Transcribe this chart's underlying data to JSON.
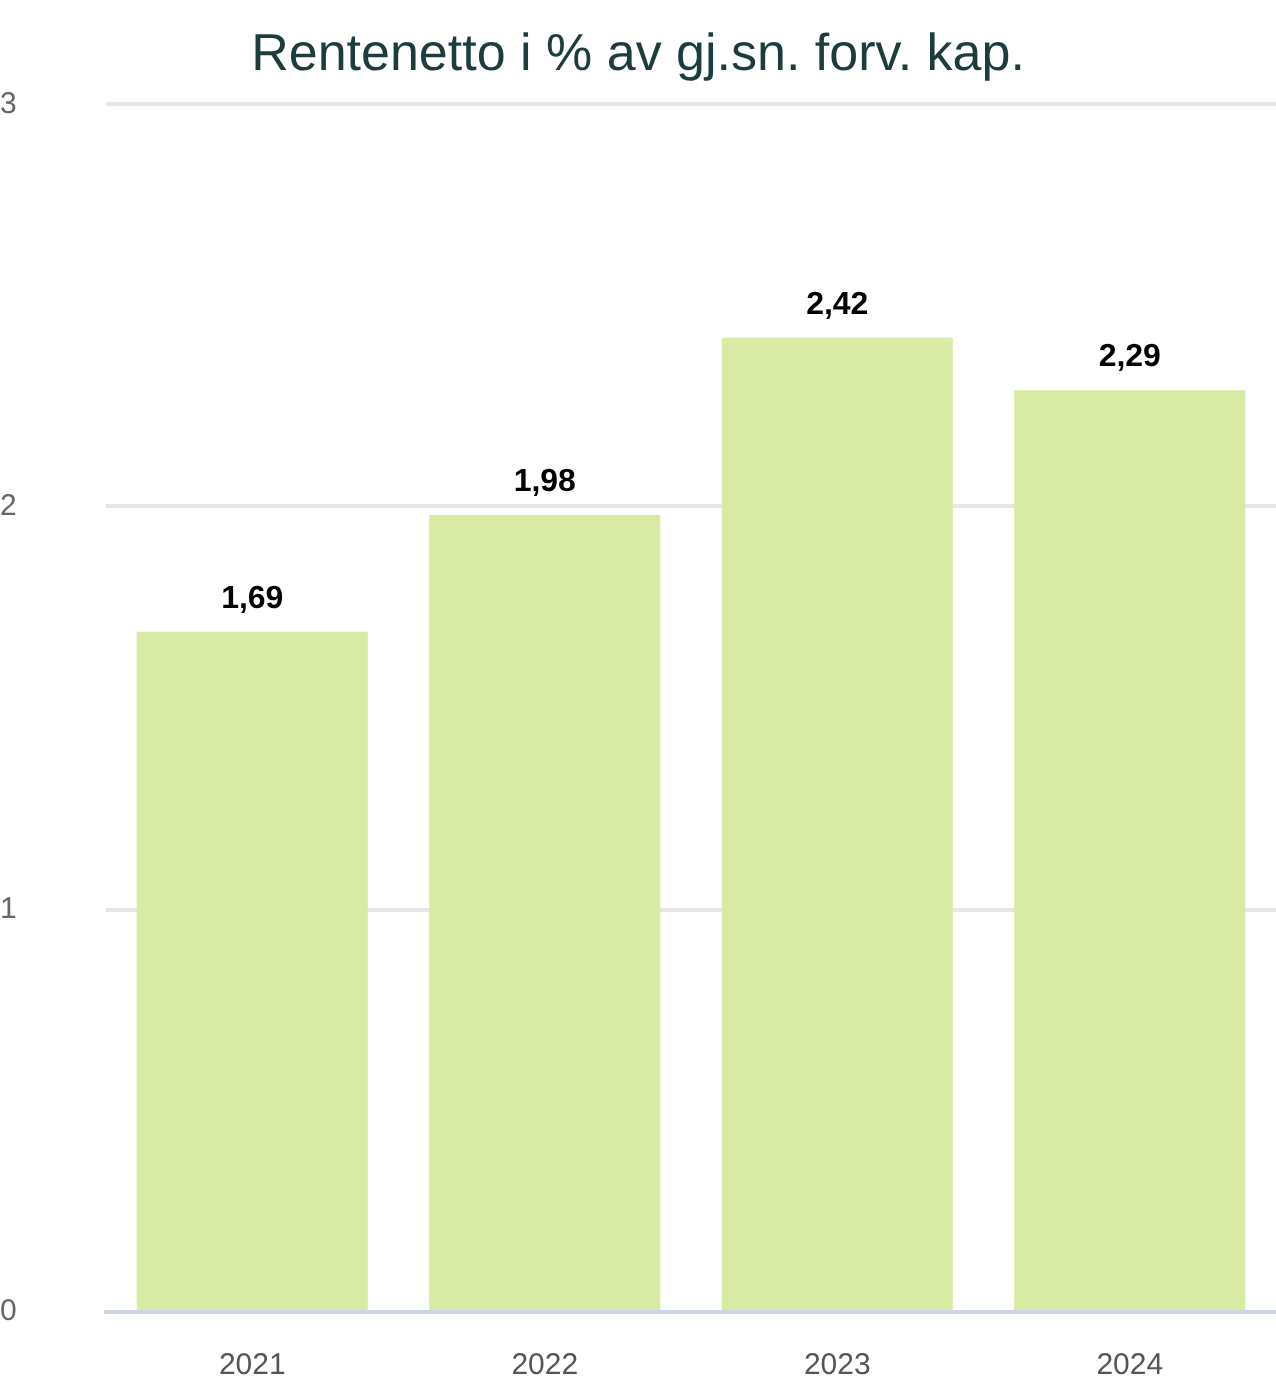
{
  "chart_data": {
    "type": "bar",
    "title": "Rentenetto i % av gj.sn. forv. kap.",
    "categories": [
      "2021",
      "2022",
      "2023",
      "2024"
    ],
    "values": [
      1.69,
      1.98,
      2.42,
      2.29
    ],
    "color": "#d8eaa3",
    "value_labels": [
      "1,69",
      "1,98",
      "2,42",
      "2,29"
    ],
    "ylim": [
      0,
      3
    ],
    "yticks": [
      0,
      1,
      2,
      3
    ],
    "grid": "y"
  }
}
